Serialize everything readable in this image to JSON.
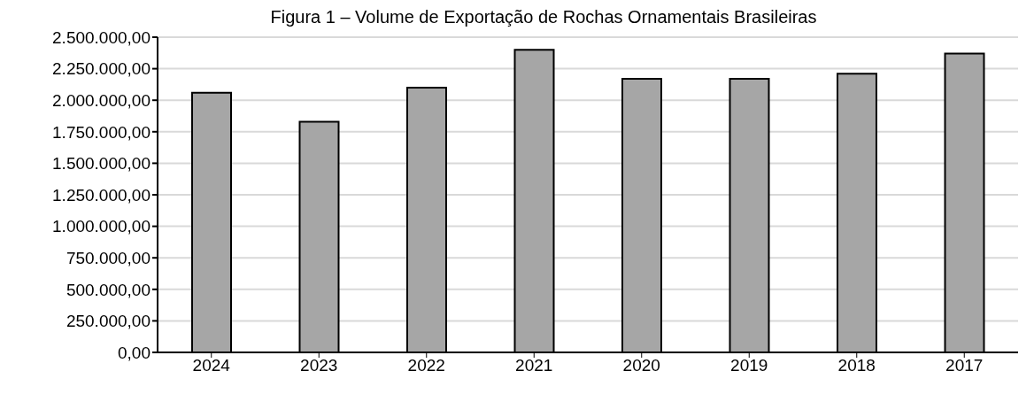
{
  "chart_data": {
    "type": "bar",
    "title": "Figura 1 – Volume de Exportação de Rochas Ornamentais Brasileiras",
    "categories": [
      "2024",
      "2023",
      "2022",
      "2021",
      "2020",
      "2019",
      "2018",
      "2017"
    ],
    "values": [
      2060000,
      1830000,
      2100000,
      2400000,
      2170000,
      2170000,
      2210000,
      2370000
    ],
    "color": "#a6a6a6",
    "ylim": [
      0,
      2500000
    ],
    "yticks": [
      {
        "value": 0,
        "label": "0,00"
      },
      {
        "value": 250000,
        "label": "250.000,00"
      },
      {
        "value": 500000,
        "label": "500.000,00"
      },
      {
        "value": 750000,
        "label": "750.000,00"
      },
      {
        "value": 1000000,
        "label": "1.000.000,00"
      },
      {
        "value": 1250000,
        "label": "1.250.000,00"
      },
      {
        "value": 1500000,
        "label": "1.500.000,00"
      },
      {
        "value": 1750000,
        "label": "1.750.000,00"
      },
      {
        "value": 2000000,
        "label": "2.000.000,00"
      },
      {
        "value": 2250000,
        "label": "2.250.000,00"
      },
      {
        "value": 2500000,
        "label": "2.500.000,00"
      }
    ],
    "grid": "y",
    "legend": false
  }
}
